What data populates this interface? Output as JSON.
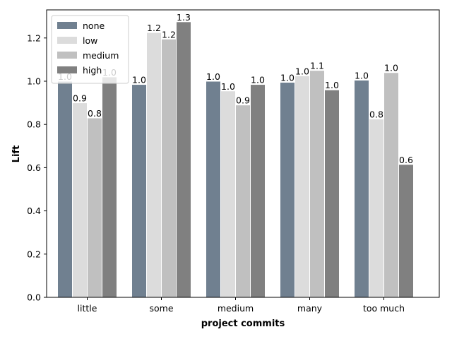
{
  "chart_data": {
    "type": "bar",
    "title": "",
    "xlabel": "project commits",
    "ylabel": "Lift",
    "categories": [
      "little",
      "some",
      "medium",
      "many",
      "too much"
    ],
    "series": [
      {
        "name": "none",
        "color": "#708090",
        "values": [
          1.0,
          0.985,
          1.0,
          0.995,
          1.005
        ],
        "labels": [
          "1.0",
          "1.0",
          "1.0",
          "1.0",
          "1.0"
        ]
      },
      {
        "name": "low",
        "color": "#dcdcdc",
        "values": [
          0.9,
          1.225,
          0.955,
          1.025,
          0.825
        ],
        "labels": [
          "0.9",
          "1.2",
          "1.0",
          "1.0",
          "0.8"
        ]
      },
      {
        "name": "medium",
        "color": "#c0c0c0",
        "values": [
          0.83,
          1.195,
          0.89,
          1.05,
          1.04
        ],
        "labels": [
          "0.8",
          "1.2",
          "0.9",
          "1.1",
          "1.0"
        ]
      },
      {
        "name": "high",
        "color": "#808080",
        "values": [
          1.02,
          1.275,
          0.985,
          0.96,
          0.615
        ],
        "labels": [
          "1.0",
          "1.3",
          "1.0",
          "1.0",
          "0.6"
        ]
      }
    ],
    "ylim": [
      0,
      1.33
    ],
    "yticks": [
      0.0,
      0.2,
      0.4,
      0.6,
      0.8,
      1.0,
      1.2
    ],
    "ytick_labels": [
      "0.0",
      "0.2",
      "0.4",
      "0.6",
      "0.8",
      "1.0",
      "1.2"
    ],
    "grid": false,
    "legend_position": "top-left"
  }
}
